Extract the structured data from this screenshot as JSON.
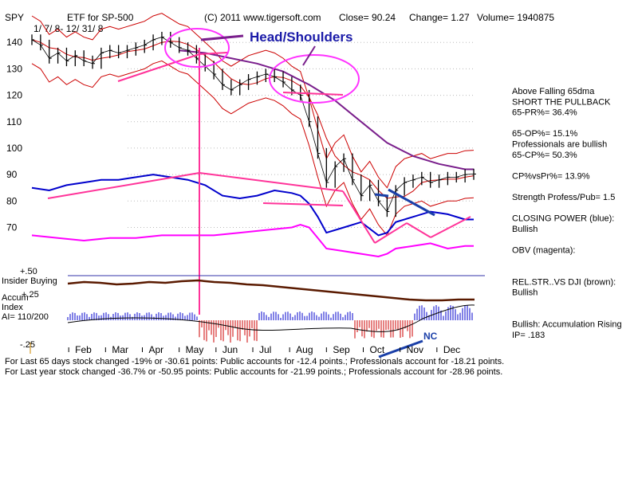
{
  "header": {
    "ticker": "SPY",
    "subtitle": "ETF for SP-500",
    "source": "(C) 2011 www.tigersoft.com",
    "close": "Close=  90.24",
    "change": "Change= 1.27",
    "volume": "Volume= 1940875",
    "range": "1/ 7/ 8- 12/ 31/ 8"
  },
  "annotations": {
    "head_shoulders": "Head/Shoulders",
    "nc": "NC",
    "insider_buying": "Insider Buying",
    "accum_index": "Accum\nIndex",
    "accum_line1": "Accum",
    "accum_line2": "Index",
    "ai": "AI= 110/200",
    "plus50": "+.50",
    "plus25": "+.25",
    "minus25": "-.25"
  },
  "side_panel": [
    "Above Falling 65dma",
    "SHORT THE PULLBACK",
    "     65-PR%= 36.4%",
    "",
    "     65-OP%= 15.1%",
    "Professionals are bullish",
    "     65-CP%= 50.3%",
    "",
    "CP%vsPr%=  13.9%",
    "",
    "Strength Profess/Pub= 1.5",
    "",
    "CLOSING POWER (blue):",
    "Bullish",
    "",
    "OBV (magenta):",
    "",
    "",
    "REL.STR..VS DJI (brown):",
    "Bullish",
    "",
    "",
    "Bullish: Accumulation Rising",
    "     IP=  .183"
  ],
  "footer": [
    "For Last 65 days stock changed -19% or -30.61 points:  Public accounts for -12.4 points.;  Professionals account for -18.21 points.",
    "For Last year stock changed -36.7% or -50.95 points:  Public accounts for -21.99 points.;  Professionals account for -28.96 points."
  ],
  "colors": {
    "price": "#000000",
    "ma": "#cc0000",
    "ma65": "#7a1f8c",
    "band": "#cc0000",
    "closing_power": "#0000cc",
    "obv": "#ff00ff",
    "trendline": "#ff3399",
    "rel_str": "#5a1a00",
    "accum_pos": "#0000cc",
    "accum_neg": "#cc0000",
    "blue_line": "#1a3fa8"
  },
  "chart_data": {
    "type": "line",
    "x_months": [
      "Feb",
      "Mar",
      "Apr",
      "May",
      "Jun",
      "Jul",
      "Aug",
      "Sep",
      "Oct",
      "Nov",
      "Dec"
    ],
    "y_ticks": [
      140,
      130,
      120,
      110,
      100,
      90,
      80,
      70
    ],
    "ylim": [
      62,
      147
    ],
    "xlim": [
      0,
      51
    ],
    "series": [
      {
        "key": "price",
        "x": [
          0,
          1,
          2,
          3,
          4,
          5,
          6,
          7,
          8,
          9,
          10,
          11,
          12,
          13,
          14,
          15,
          16,
          17,
          18,
          19,
          20,
          21,
          22,
          23,
          24,
          25,
          26,
          27,
          28,
          29,
          30,
          31,
          32,
          33,
          34,
          35,
          36,
          37,
          38,
          39,
          40,
          41,
          42,
          43,
          44,
          45,
          46,
          47,
          48,
          49,
          50,
          51
        ],
        "values": [
          141,
          139,
          134,
          136,
          133,
          135,
          133,
          132,
          136,
          137,
          136,
          137,
          138,
          139,
          141,
          142,
          140,
          138,
          137,
          134,
          131,
          128,
          124,
          122,
          124,
          126,
          127,
          128,
          127,
          125,
          122,
          120,
          110,
          98,
          87,
          93,
          96,
          88,
          82,
          86,
          80,
          76,
          84,
          87,
          88,
          89,
          87,
          88,
          89,
          89,
          90,
          90.2
        ]
      },
      {
        "key": "closing_power",
        "x": [
          0,
          2,
          4,
          6,
          8,
          10,
          12,
          14,
          16,
          18,
          20,
          22,
          24,
          26,
          28,
          30,
          31,
          32,
          33,
          34,
          36,
          38,
          40,
          41,
          42,
          44,
          46,
          48,
          50,
          51
        ],
        "values": [
          85,
          84,
          86,
          87,
          88,
          88,
          89,
          90,
          89,
          88,
          86,
          82,
          81,
          82,
          84,
          83,
          82,
          79,
          74,
          68,
          70,
          72,
          67,
          68,
          72,
          74,
          76,
          75,
          73,
          73
        ]
      },
      {
        "key": "obv",
        "x": [
          0,
          3,
          6,
          9,
          12,
          15,
          18,
          21,
          24,
          27,
          30,
          31,
          32,
          33,
          34,
          36,
          38,
          40,
          41,
          42,
          44,
          46,
          48,
          50,
          51
        ],
        "values": [
          67,
          66,
          65,
          66,
          66,
          67,
          67,
          67,
          68,
          69,
          70,
          71,
          70,
          66,
          62,
          61,
          60,
          59,
          60,
          62,
          63,
          64,
          62,
          63,
          63
        ]
      },
      {
        "key": "ma65",
        "x": [
          17,
          20,
          23,
          26,
          29,
          32,
          35,
          38,
          41,
          44,
          47,
          50,
          51
        ],
        "values": [
          137,
          136,
          134,
          132,
          129,
          124,
          118,
          110,
          102,
          97,
          94,
          92,
          92
        ]
      }
    ]
  }
}
